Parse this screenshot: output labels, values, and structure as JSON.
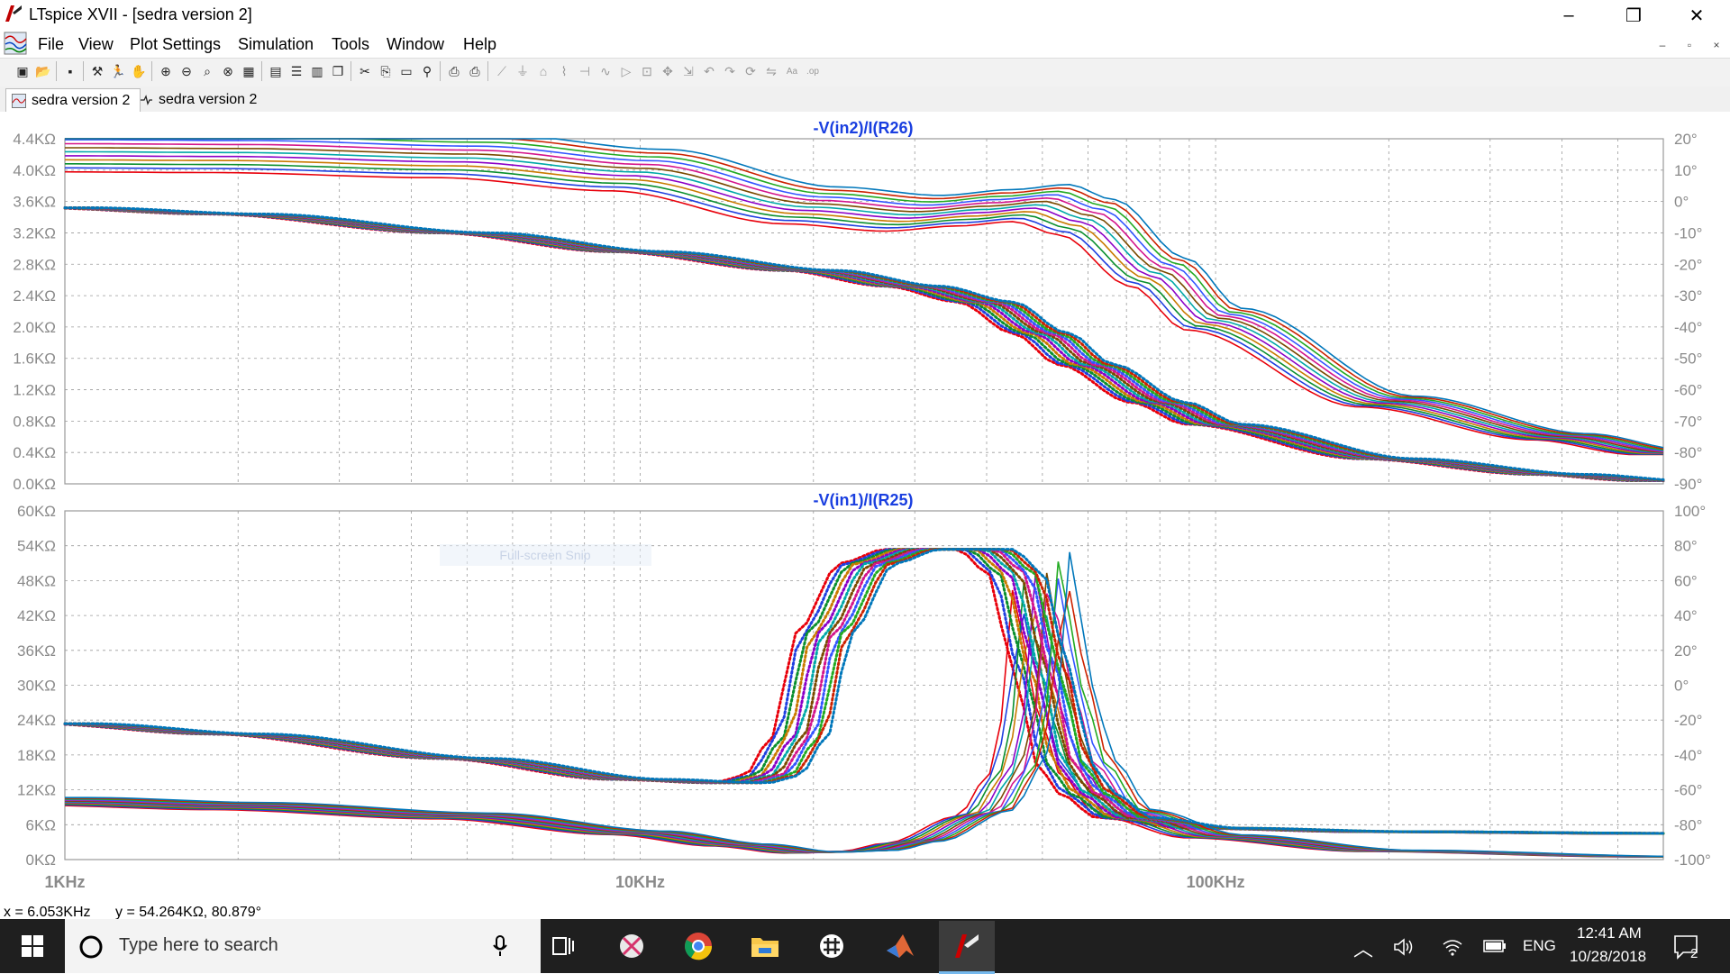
{
  "window": {
    "title": "LTspice XVII - [sedra version 2]",
    "minimize_glyph": "–",
    "restore_glyph": "❐",
    "close_glyph": "✕"
  },
  "menu": {
    "items": [
      "File",
      "View",
      "Plot Settings",
      "Simulation",
      "Tools",
      "Window",
      "Help"
    ],
    "mdi_min": "–",
    "mdi_restore": "▫",
    "mdi_close": "×"
  },
  "toolbar": {
    "icons": [
      "new-schematic-icon",
      "open-icon",
      "save-icon",
      "control-panel-icon",
      "run-icon",
      "halt-icon",
      "zoom-in-icon",
      "zoom-out-icon",
      "zoom-area-icon",
      "zoom-fit-icon",
      "autorange-icon",
      "grid-icon",
      "tile-horizontal-icon",
      "tile-vertical-icon",
      "cascade-icon",
      "cut-icon",
      "copy-icon",
      "paste-icon",
      "find-icon",
      "print-icon",
      "print-preview-icon",
      "wire-icon",
      "ground-icon",
      "label-icon",
      "resistor-icon",
      "capacitor-icon",
      "inductor-icon",
      "diode-icon",
      "component-icon",
      "move-icon",
      "drag-icon",
      "undo-icon",
      "redo-icon",
      "rotate-icon",
      "mirror-icon",
      "text-icon",
      "spice-directive-icon"
    ]
  },
  "tabs": [
    {
      "label": "sedra version 2",
      "icon": "waveform-icon",
      "active": true
    },
    {
      "label": "sedra version 2",
      "icon": "schematic-icon",
      "active": false
    }
  ],
  "chart_data": [
    {
      "type": "line",
      "title": "-V(in2)/I(R26)",
      "x_scale": "log",
      "xlim_hz": [
        1000,
        600000
      ],
      "x_tick_labels": [
        "1KHz",
        "10KHz",
        "100KHz"
      ],
      "y_left_ticks": [
        "4.4KΩ",
        "4.0KΩ",
        "3.6KΩ",
        "3.2KΩ",
        "2.8KΩ",
        "2.4KΩ",
        "2.0KΩ",
        "1.6KΩ",
        "1.2KΩ",
        "0.8KΩ",
        "0.4KΩ",
        "0.0KΩ"
      ],
      "y_left_range_kohm": [
        0,
        4.4
      ],
      "y_right_ticks": [
        "20°",
        "10°",
        "0°",
        "-10°",
        "-20°",
        "-30°",
        "-40°",
        "-50°",
        "-60°",
        "-70°",
        "-80°",
        "-90°"
      ],
      "y_right_range_deg": [
        -90,
        20
      ],
      "grid": true,
      "magnitude_kohm": {
        "freq_hz": [
          1000,
          2000,
          5000,
          10000,
          20000,
          30000,
          40000,
          50000,
          60000,
          80000,
          100000,
          200000,
          400000,
          600000
        ],
        "values": [
          4.26,
          4.25,
          4.18,
          4.0,
          3.55,
          3.45,
          3.52,
          3.58,
          3.4,
          2.7,
          2.1,
          1.05,
          0.6,
          0.4
        ]
      },
      "phase_deg": {
        "freq_hz": [
          1000,
          2000,
          5000,
          10000,
          20000,
          30000,
          40000,
          50000,
          60000,
          80000,
          100000,
          200000,
          400000,
          600000
        ],
        "values": [
          -2,
          -4,
          -10,
          -16,
          -22,
          -27,
          -32,
          -42,
          -52,
          -64,
          -71,
          -82,
          -87,
          -89
        ]
      }
    },
    {
      "type": "line",
      "title": "-V(in1)/I(R25)",
      "x_scale": "log",
      "xlim_hz": [
        1000,
        600000
      ],
      "x_tick_labels": [
        "1KHz",
        "10KHz",
        "100KHz"
      ],
      "y_left_ticks": [
        "60KΩ",
        "54KΩ",
        "48KΩ",
        "42KΩ",
        "36KΩ",
        "30KΩ",
        "24KΩ",
        "18KΩ",
        "12KΩ",
        "6KΩ",
        "0KΩ"
      ],
      "y_left_range_kohm": [
        0,
        60
      ],
      "y_right_ticks": [
        "100°",
        "80°",
        "60°",
        "40°",
        "20°",
        "0°",
        "-20°",
        "-40°",
        "-60°",
        "-80°",
        "-100°"
      ],
      "y_right_range_deg": [
        -100,
        100
      ],
      "grid": true,
      "magnitude_kohm": {
        "freq_hz": [
          1000,
          2000,
          5000,
          10000,
          15000,
          20000,
          25000,
          30000,
          40000,
          45000,
          48000,
          50000,
          52000,
          55000,
          60000,
          70000,
          100000,
          200000,
          600000
        ],
        "values": [
          10,
          9.2,
          7.5,
          4.6,
          2.5,
          1.2,
          1.5,
          3,
          8,
          15,
          26,
          50,
          40,
          28,
          16,
          8,
          4,
          1.5,
          0.5
        ]
      },
      "phase_deg": {
        "freq_hz": [
          1000,
          2000,
          5000,
          10000,
          15000,
          17000,
          19000,
          21000,
          25000,
          30000,
          40000,
          45000,
          50000,
          55000,
          60000,
          70000,
          100000,
          200000,
          600000
        ],
        "values": [
          -22,
          -28,
          -42,
          -54,
          -56,
          -52,
          -30,
          30,
          70,
          78,
          78,
          65,
          10,
          -45,
          -62,
          -76,
          -82,
          -84,
          -85
        ]
      }
    }
  ],
  "watermark": "Full-screen Snip",
  "status": {
    "x": "x = 6.053KHz",
    "y": "y = 54.264KΩ, 80.879°"
  },
  "taskbar": {
    "search_placeholder": "Type here to search",
    "apps": [
      "task-view-icon",
      "snipping-tool-icon",
      "chrome-icon",
      "file-explorer-icon",
      "slack-icon",
      "matlab-icon",
      "ltspice-icon"
    ],
    "language": "ENG",
    "time": "12:41 AM",
    "date": "10/28/2018",
    "notification_count": "2"
  }
}
